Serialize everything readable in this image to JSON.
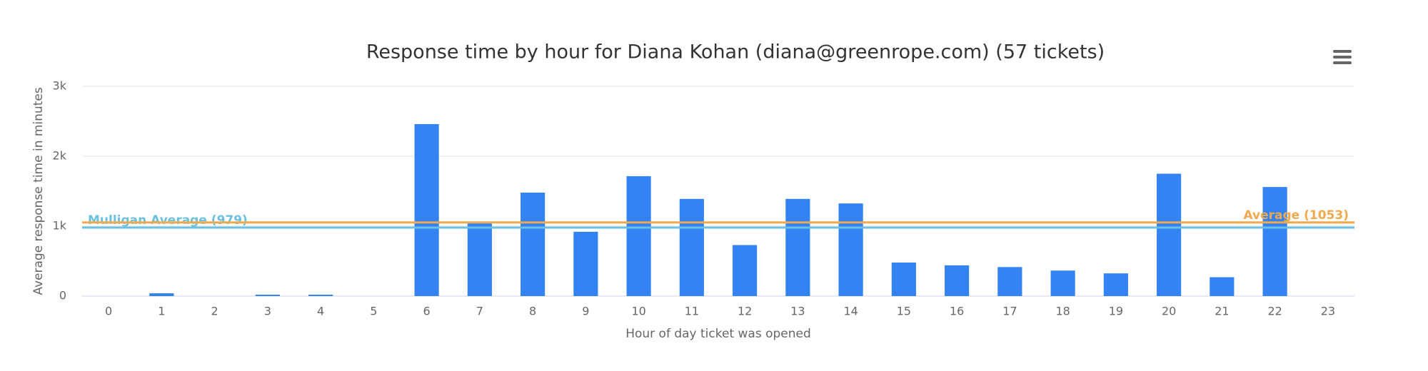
{
  "chart_data": {
    "type": "bar",
    "title": "Response time by hour for Diana Kohan (diana@greenrope.com) (57 tickets)",
    "x_label": "Hour of day ticket was opened",
    "y_label": "Average response time in minutes",
    "categories": [
      "0",
      "1",
      "2",
      "3",
      "4",
      "5",
      "6",
      "7",
      "8",
      "9",
      "10",
      "11",
      "12",
      "13",
      "14",
      "15",
      "16",
      "17",
      "18",
      "19",
      "20",
      "21",
      "22",
      "23"
    ],
    "values": [
      0,
      40,
      0,
      20,
      20,
      0,
      2460,
      1040,
      1480,
      920,
      1715,
      1390,
      730,
      1390,
      1325,
      480,
      440,
      415,
      365,
      325,
      1750,
      270,
      1560,
      0
    ],
    "color": "#3483f4",
    "ylim": [
      0,
      3000
    ],
    "yticks": [
      0,
      {
        "value": 1000,
        "label": "1k"
      },
      {
        "value": 2000,
        "label": "2k"
      },
      {
        "value": 3000,
        "label": "3k"
      }
    ],
    "grid": true,
    "reference_lines": [
      {
        "value": 979,
        "label": "Mulligan Average (979)",
        "color": "#6cc0e0"
      },
      {
        "value": 1053,
        "label": "Average (1053)",
        "color": "#f0a94d"
      }
    ]
  }
}
